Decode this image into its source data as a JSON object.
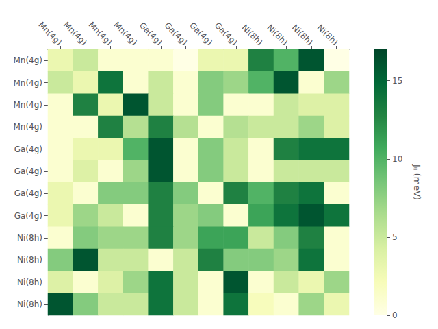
{
  "chart_data": {
    "type": "heatmap",
    "x_categories": [
      "Mn(4g)",
      "Mn(4g)",
      "Mn(4g)",
      "Mn(4g)",
      "Ga(4g)",
      "Ga(4g)",
      "Ga(4g)",
      "Ga(4g)",
      "Ni(8h)",
      "Ni(8h)",
      "Ni(8h)",
      "Ni(8h)"
    ],
    "y_categories": [
      "Mn(4g)",
      "Mn(4g)",
      "Mn(4g)",
      "Mn(4g)",
      "Ga(4g)",
      "Ga(4g)",
      "Ga(4g)",
      "Ga(4g)",
      "Ni(8h)",
      "Ni(8h)",
      "Ni(8h)",
      "Ni(8h)"
    ],
    "values": [
      [
        3,
        5,
        1,
        1,
        1,
        0,
        3,
        3,
        13,
        10,
        16,
        0
      ],
      [
        5,
        3,
        14,
        1,
        5,
        1,
        8,
        7,
        10,
        16,
        1,
        7
      ],
      [
        1,
        13,
        3,
        16,
        5,
        1,
        8,
        1,
        1,
        5,
        4,
        4
      ],
      [
        1,
        1,
        13,
        6,
        13,
        6,
        1,
        6,
        5,
        5,
        7,
        4
      ],
      [
        1,
        3,
        3,
        10,
        16,
        1,
        8,
        5,
        1,
        13,
        14,
        14
      ],
      [
        1,
        4,
        1,
        7,
        16,
        1,
        8,
        5,
        1,
        5,
        5,
        5
      ],
      [
        3,
        1,
        8,
        8,
        13,
        8,
        1,
        13,
        10,
        13,
        14,
        1
      ],
      [
        3,
        7,
        5,
        1,
        13,
        7,
        8,
        1,
        11,
        14,
        16,
        14
      ],
      [
        1,
        8,
        7,
        7,
        13,
        7,
        11,
        11,
        5,
        8,
        13,
        1
      ],
      [
        8,
        16,
        5,
        5,
        1,
        5,
        13,
        8,
        8,
        7,
        14,
        1
      ],
      [
        4,
        1,
        4,
        7,
        14,
        5,
        1,
        16,
        1,
        5,
        3,
        7
      ],
      [
        16,
        8,
        5,
        5,
        14,
        5,
        1,
        14,
        2,
        1,
        7,
        3
      ]
    ],
    "colorbar_label": "Jᵢⱼ (meV)",
    "colorbar_range": [
      0,
      17
    ],
    "colorbar_ticks": [
      0,
      5,
      10,
      15
    ],
    "grid": false
  }
}
